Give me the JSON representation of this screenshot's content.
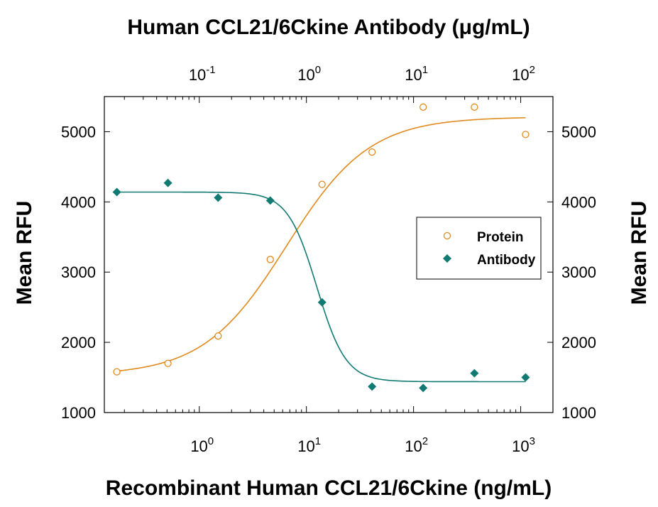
{
  "chart_data": {
    "type": "scatter",
    "title_top": "Human CCL21/6Ckine Antibody (μg/mL)",
    "xlabel": "Recombinant Human CCL21/6Ckine (ng/mL)",
    "ylabel_left": "Mean RFU",
    "ylabel_right": "Mean RFU",
    "x_scale": "log",
    "x_top_scale": "log",
    "x_bottom_ticks": [
      {
        "value": 1,
        "base": "10",
        "exp": "0"
      },
      {
        "value": 10,
        "base": "10",
        "exp": "1"
      },
      {
        "value": 100,
        "base": "10",
        "exp": "2"
      },
      {
        "value": 1000,
        "base": "10",
        "exp": "3"
      }
    ],
    "x_top_ticks": [
      {
        "value": 0.1,
        "base": "10",
        "exp": "-1"
      },
      {
        "value": 1,
        "base": "10",
        "exp": "0"
      },
      {
        "value": 10,
        "base": "10",
        "exp": "1"
      },
      {
        "value": 100,
        "base": "10",
        "exp": "2"
      }
    ],
    "xlim_bottom": [
      0.13,
      2000
    ],
    "xlim_top": [
      0.013,
      200
    ],
    "ylim": [
      1000,
      5500
    ],
    "y_ticks": [
      "1000",
      "2000",
      "3000",
      "4000",
      "5000"
    ],
    "grid": false,
    "legend_position": "right-middle",
    "series": [
      {
        "name": "Protein",
        "axis": "bottom",
        "marker": "open-circle",
        "color": "#E08A1E",
        "x": [
          0.17,
          0.51,
          1.5,
          4.6,
          14,
          41,
          123,
          370,
          1111
        ],
        "y": [
          1580,
          1700,
          2090,
          3180,
          4250,
          4710,
          5350,
          5350,
          4960
        ],
        "fit": {
          "bottom": 1530,
          "top": 5210,
          "ec50": 6.5,
          "hill": 1.12
        }
      },
      {
        "name": "Antibody",
        "axis": "top",
        "marker": "filled-diamond",
        "color": "#117A73",
        "x": [
          0.017,
          0.051,
          0.15,
          0.46,
          1.4,
          4.1,
          12.3,
          37,
          111
        ],
        "y": [
          4140,
          4270,
          4060,
          4020,
          2570,
          1370,
          1350,
          1560,
          1500
        ],
        "fit": {
          "bottom": 1440,
          "top": 4140,
          "ec50": 1.25,
          "hill": 3.2
        }
      }
    ]
  }
}
